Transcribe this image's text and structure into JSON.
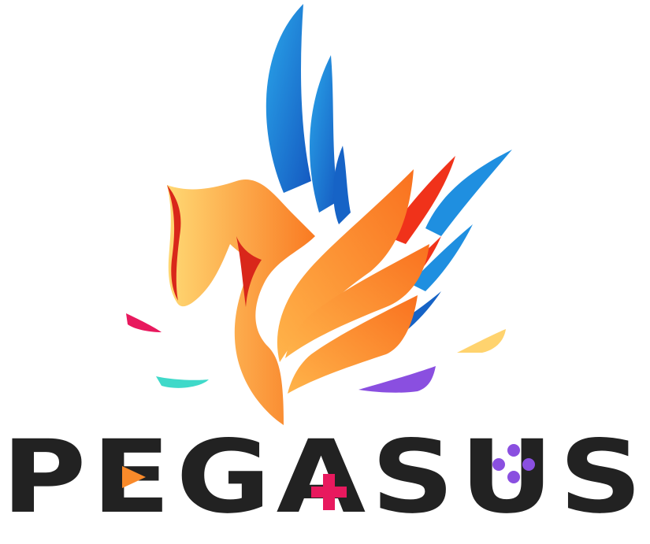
{
  "logo": {
    "wordmark": "PEGASUS",
    "colors": {
      "text": "#222222",
      "blue": "#1f8fe0",
      "blue_dark": "#1663c6",
      "orange": "#f98a2a",
      "orange_light": "#ffc25a",
      "red": "#f0321a",
      "pink": "#e8195e",
      "teal": "#3fd9c9",
      "yellow": "#ffd36e",
      "purple": "#8a4fe0"
    },
    "icons": [
      "pegasus-mark-icon",
      "play-triangle-icon",
      "plus-cross-icon",
      "gamepad-buttons-icon"
    ]
  }
}
